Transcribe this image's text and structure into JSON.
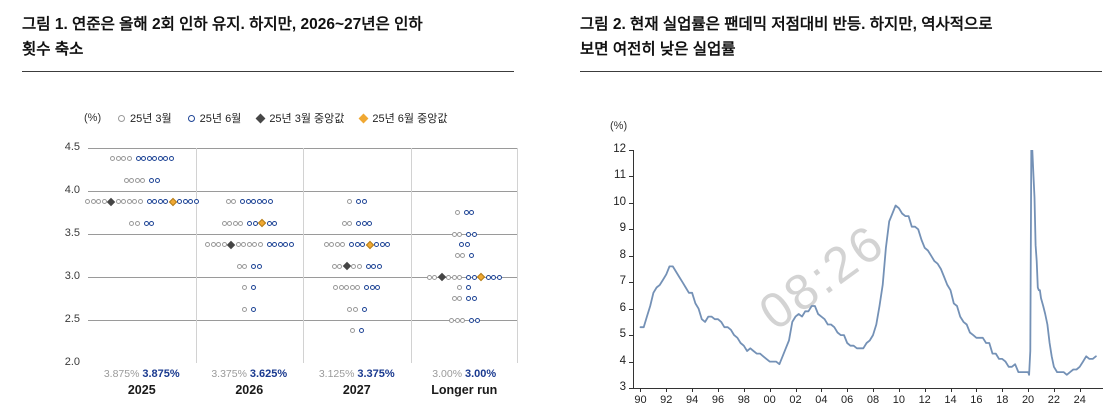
{
  "watermark": {
    "text": "08:26"
  },
  "figure1": {
    "title_line1": "그림 1. 연준은 올해 2회 인하 유지. 하지만, 2026~27년은 인하",
    "title_line2": "횟수 축소",
    "unit": "(%)"
  },
  "figure2": {
    "title_line1": "그림 2. 현재 실업률은 팬데믹 저점대비 반등. 하지만, 역사적으로",
    "title_line2": "보면 여전히 낮은 실업률",
    "unit": "(%)"
  },
  "chart_data": [
    {
      "type": "scatter",
      "subtype": "fomc_dot_plot",
      "title": "그림 1. 연준은 올해 2회 인하 유지. 하지만, 2026~27년은 인하 횟수 축소",
      "ylabel": "(%)",
      "ylim": [
        2.0,
        4.5
      ],
      "yticks": [
        "4.5",
        "4.0",
        "3.5",
        "3.0",
        "2.5",
        "2.0"
      ],
      "gridlines": [
        4.5,
        4.0,
        3.5,
        3.0,
        2.5
      ],
      "categories": [
        "2025",
        "2026",
        "2027",
        "Longer run"
      ],
      "legend": [
        {
          "label": "25년 3월",
          "marker": "open-circle",
          "color": "#9a9a9a"
        },
        {
          "label": "25년 6월",
          "marker": "open-circle",
          "color": "#1f4596"
        },
        {
          "label": "25년 3월 중앙값",
          "marker": "diamond",
          "color": "#474747"
        },
        {
          "label": "25년 6월 중앙값",
          "marker": "diamond",
          "color": "#f0a832"
        }
      ],
      "series": [
        {
          "name": "25년 3월",
          "marker": "open-circle",
          "color": "#9a9a9a",
          "medians": [
            3.875,
            3.375,
            3.125,
            3
          ],
          "median_labels": [
            "3.875%",
            "3.375%",
            "3.125%",
            "3.00%"
          ],
          "dots_by_category": [
            {
              "4.375": 4,
              "4.125": 4,
              "3.875": 9,
              "3.625": 2
            },
            {
              "3.875": 2,
              "3.625": 4,
              "3.375": 9,
              "3.125": 2,
              "2.875": 1,
              "2.625": 1
            },
            {
              "3.875": 1,
              "3.625": 2,
              "3.375": 4,
              "3.125": 4,
              "2.875": 5,
              "2.625": 2,
              "2.375": 1
            },
            {
              "3.75": 1,
              "3.5": 2,
              "3.25": 2,
              "3": 5,
              "2.875": 1,
              "2.75": 2,
              "2.5": 3
            }
          ]
        },
        {
          "name": "25년 6월",
          "marker": "open-circle",
          "color": "#1f4596",
          "medians": [
            3.875,
            3.625,
            3.375,
            3
          ],
          "median_labels": [
            "3.875%",
            "3.625%",
            "3.375%",
            "3.00%"
          ],
          "dots_by_category": [
            {
              "4.375": 7,
              "4.125": 2,
              "3.875": 8,
              "3.625": 2
            },
            {
              "3.875": 6,
              "3.625": 4,
              "3.375": 5,
              "3.125": 2,
              "2.875": 1,
              "2.625": 1
            },
            {
              "3.875": 2,
              "3.625": 3,
              "3.375": 6,
              "3.125": 3,
              "2.875": 3,
              "2.625": 1,
              "2.375": 1
            },
            {
              "3.75": 2,
              "3.5": 2,
              "3.375": 2,
              "3.25": 1,
              "3": 5,
              "2.875": 1,
              "2.75": 2,
              "2.5": 2
            }
          ]
        }
      ],
      "median_colors": {
        "march": "#474747",
        "june": "#f0a832"
      }
    },
    {
      "type": "line",
      "title": "그림 2. 현재 실업률은 팬데믹 저점대비 반등. 하지만, 역사적으로 보면 여전히 낮은 실업률",
      "ylabel": "(%)",
      "ylim": [
        3,
        12
      ],
      "yticks": [
        12,
        11,
        10,
        9,
        8,
        7,
        6,
        5,
        4,
        3
      ],
      "xlim": [
        1989.5,
        2025.8
      ],
      "xtick_years": [
        1990,
        1992,
        1994,
        1996,
        1998,
        2000,
        2002,
        2004,
        2006,
        2008,
        2010,
        2012,
        2014,
        2016,
        2018,
        2020,
        2022,
        2024
      ],
      "xtick_labels": [
        "90",
        "92",
        "94",
        "96",
        "98",
        "00",
        "02",
        "04",
        "06",
        "08",
        "10",
        "12",
        "14",
        "16",
        "18",
        "20",
        "22",
        "24"
      ],
      "grid": false,
      "series": [
        {
          "name": "unemployment_rate",
          "color": "#7491b6",
          "points": [
            [
              1990,
              5.3
            ],
            [
              1990.25,
              5.3
            ],
            [
              1990.5,
              5.7
            ],
            [
              1990.75,
              6.1
            ],
            [
              1991,
              6.6
            ],
            [
              1991.25,
              6.8
            ],
            [
              1991.5,
              6.9
            ],
            [
              1991.75,
              7.1
            ],
            [
              1992,
              7.3
            ],
            [
              1992.25,
              7.6
            ],
            [
              1992.5,
              7.6
            ],
            [
              1992.75,
              7.4
            ],
            [
              1993,
              7.2
            ],
            [
              1993.25,
              7.0
            ],
            [
              1993.5,
              6.8
            ],
            [
              1993.75,
              6.6
            ],
            [
              1994,
              6.6
            ],
            [
              1994.25,
              6.2
            ],
            [
              1994.5,
              6.0
            ],
            [
              1994.75,
              5.6
            ],
            [
              1995,
              5.5
            ],
            [
              1995.25,
              5.7
            ],
            [
              1995.5,
              5.7
            ],
            [
              1995.75,
              5.6
            ],
            [
              1996,
              5.6
            ],
            [
              1996.25,
              5.5
            ],
            [
              1996.5,
              5.3
            ],
            [
              1996.75,
              5.3
            ],
            [
              1997,
              5.2
            ],
            [
              1997.25,
              5.0
            ],
            [
              1997.5,
              4.9
            ],
            [
              1997.75,
              4.7
            ],
            [
              1998,
              4.6
            ],
            [
              1998.25,
              4.4
            ],
            [
              1998.5,
              4.5
            ],
            [
              1998.75,
              4.4
            ],
            [
              1999,
              4.3
            ],
            [
              1999.25,
              4.3
            ],
            [
              1999.5,
              4.2
            ],
            [
              1999.75,
              4.1
            ],
            [
              2000,
              4.0
            ],
            [
              2000.25,
              4.0
            ],
            [
              2000.5,
              4.0
            ],
            [
              2000.75,
              3.9
            ],
            [
              2001,
              4.2
            ],
            [
              2001.25,
              4.5
            ],
            [
              2001.5,
              4.8
            ],
            [
              2001.75,
              5.5
            ],
            [
              2002,
              5.7
            ],
            [
              2002.25,
              5.8
            ],
            [
              2002.5,
              5.7
            ],
            [
              2002.75,
              5.9
            ],
            [
              2003,
              5.9
            ],
            [
              2003.25,
              6.1
            ],
            [
              2003.5,
              6.1
            ],
            [
              2003.75,
              5.8
            ],
            [
              2004,
              5.7
            ],
            [
              2004.25,
              5.6
            ],
            [
              2004.5,
              5.4
            ],
            [
              2004.75,
              5.4
            ],
            [
              2005,
              5.3
            ],
            [
              2005.25,
              5.1
            ],
            [
              2005.5,
              5.0
            ],
            [
              2005.75,
              5.0
            ],
            [
              2006,
              4.7
            ],
            [
              2006.25,
              4.6
            ],
            [
              2006.5,
              4.6
            ],
            [
              2006.75,
              4.5
            ],
            [
              2007,
              4.5
            ],
            [
              2007.25,
              4.5
            ],
            [
              2007.5,
              4.7
            ],
            [
              2007.75,
              4.8
            ],
            [
              2008,
              5.0
            ],
            [
              2008.25,
              5.4
            ],
            [
              2008.5,
              6.1
            ],
            [
              2008.75,
              6.9
            ],
            [
              2009,
              8.3
            ],
            [
              2009.25,
              9.3
            ],
            [
              2009.5,
              9.6
            ],
            [
              2009.75,
              9.9
            ],
            [
              2010,
              9.8
            ],
            [
              2010.25,
              9.6
            ],
            [
              2010.5,
              9.5
            ],
            [
              2010.75,
              9.5
            ],
            [
              2011,
              9.1
            ],
            [
              2011.25,
              9.1
            ],
            [
              2011.5,
              9.0
            ],
            [
              2011.75,
              8.6
            ],
            [
              2012,
              8.3
            ],
            [
              2012.25,
              8.2
            ],
            [
              2012.5,
              8.0
            ],
            [
              2012.75,
              7.8
            ],
            [
              2013,
              7.7
            ],
            [
              2013.25,
              7.5
            ],
            [
              2013.5,
              7.2
            ],
            [
              2013.75,
              6.9
            ],
            [
              2014,
              6.7
            ],
            [
              2014.25,
              6.2
            ],
            [
              2014.5,
              6.1
            ],
            [
              2014.75,
              5.7
            ],
            [
              2015,
              5.5
            ],
            [
              2015.25,
              5.4
            ],
            [
              2015.5,
              5.1
            ],
            [
              2015.75,
              5.0
            ],
            [
              2016,
              4.9
            ],
            [
              2016.25,
              4.9
            ],
            [
              2016.5,
              4.9
            ],
            [
              2016.75,
              4.7
            ],
            [
              2017,
              4.7
            ],
            [
              2017.25,
              4.3
            ],
            [
              2017.5,
              4.3
            ],
            [
              2017.75,
              4.1
            ],
            [
              2018,
              4.1
            ],
            [
              2018.25,
              4.0
            ],
            [
              2018.5,
              3.8
            ],
            [
              2018.75,
              3.8
            ],
            [
              2019,
              3.9
            ],
            [
              2019.25,
              3.6
            ],
            [
              2019.5,
              3.6
            ],
            [
              2019.75,
              3.6
            ],
            [
              2020,
              3.6
            ],
            [
              2020.08,
              3.5
            ],
            [
              2020.17,
              4.4
            ],
            [
              2020.25,
              14.7
            ],
            [
              2020.33,
              13.2
            ],
            [
              2020.42,
              11.0
            ],
            [
              2020.5,
              10.2
            ],
            [
              2020.58,
              8.4
            ],
            [
              2020.67,
              7.8
            ],
            [
              2020.75,
              6.8
            ],
            [
              2020.83,
              6.7
            ],
            [
              2020.92,
              6.7
            ],
            [
              2021,
              6.4
            ],
            [
              2021.17,
              6.1
            ],
            [
              2021.33,
              5.8
            ],
            [
              2021.5,
              5.4
            ],
            [
              2021.67,
              4.7
            ],
            [
              2021.83,
              4.2
            ],
            [
              2022,
              3.8
            ],
            [
              2022.25,
              3.6
            ],
            [
              2022.5,
              3.6
            ],
            [
              2022.75,
              3.6
            ],
            [
              2023,
              3.5
            ],
            [
              2023.25,
              3.6
            ],
            [
              2023.5,
              3.7
            ],
            [
              2023.75,
              3.7
            ],
            [
              2024,
              3.8
            ],
            [
              2024.25,
              4.0
            ],
            [
              2024.5,
              4.2
            ],
            [
              2024.75,
              4.1
            ],
            [
              2025,
              4.1
            ],
            [
              2025.25,
              4.2
            ]
          ]
        }
      ]
    }
  ]
}
